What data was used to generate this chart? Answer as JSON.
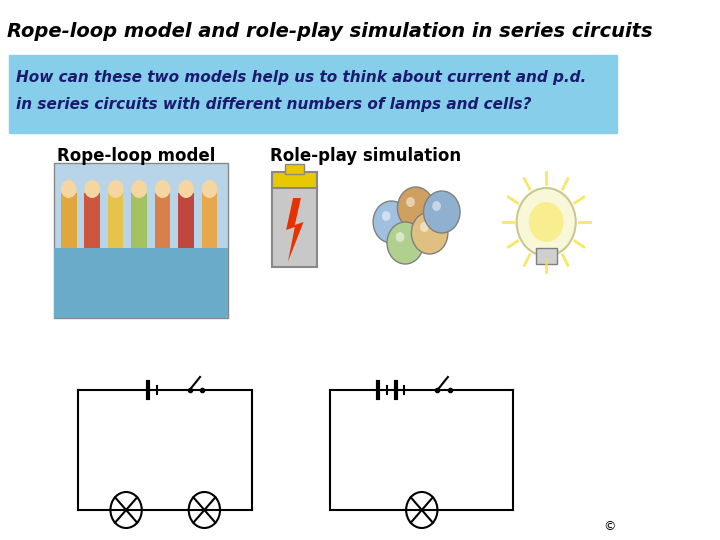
{
  "title": "Rope-loop model and role-play simulation in series circuits",
  "subtitle_line1": "How can these two models help us to think about current and p.d.",
  "subtitle_line2": "in series circuits with different numbers of lamps and cells?",
  "subtitle_bg": "#87CEEB",
  "subtitle_text_color": "#1a1a6e",
  "bg_color": "#ffffff",
  "title_fontsize": 14,
  "subtitle_fontsize": 11,
  "label_rope": "Rope-loop model",
  "label_roleplay": "Role-play simulation",
  "label_fontsize": 12
}
